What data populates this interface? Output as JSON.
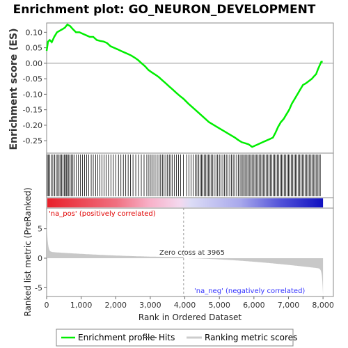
{
  "chart_data": {
    "type": "line",
    "title": "Enrichment plot: GO_NEURON_DEVELOPMENT",
    "es_panel": {
      "ylabel": "Enrichment score (ES)",
      "ylim": [
        -0.29,
        0.13
      ],
      "yticks": [
        -0.25,
        -0.2,
        -0.15,
        -0.1,
        -0.05,
        0.0,
        0.05,
        0.1
      ],
      "ytick_labels": [
        "-0.25",
        "-0.20",
        "-0.15",
        "-0.10",
        "-0.05",
        "0.00",
        "0.05",
        "0.10"
      ],
      "series": [
        {
          "x": [
            0,
            40,
            90,
            150,
            220,
            300,
            380,
            460,
            530,
            600,
            680,
            760,
            850,
            950,
            1050,
            1150,
            1250,
            1350,
            1450,
            1550,
            1650,
            1750,
            1850,
            1950,
            2050,
            2150,
            2250,
            2350,
            2450,
            2550,
            2650,
            2750,
            2850,
            2950,
            3050,
            3150,
            3250,
            3350,
            3450,
            3550,
            3650,
            3750,
            3850,
            3965,
            4100,
            4250,
            4400,
            4550,
            4700,
            4850,
            5000,
            5150,
            5300,
            5450,
            5550,
            5650,
            5750,
            5850,
            5950,
            6050,
            6150,
            6250,
            6350,
            6450,
            6550,
            6620,
            6700,
            6780,
            6860,
            6940,
            7020,
            7100,
            7180,
            7260,
            7340,
            7420,
            7500,
            7560,
            7620,
            7680,
            7740,
            7800,
            7850,
            7900,
            7950,
            7990
          ],
          "y": [
            0.04,
            0.07,
            0.075,
            0.068,
            0.085,
            0.1,
            0.105,
            0.11,
            0.115,
            0.125,
            0.12,
            0.11,
            0.1,
            0.1,
            0.095,
            0.09,
            0.085,
            0.085,
            0.075,
            0.072,
            0.07,
            0.065,
            0.055,
            0.05,
            0.045,
            0.04,
            0.035,
            0.03,
            0.025,
            0.018,
            0.01,
            0.0,
            -0.01,
            -0.022,
            -0.03,
            -0.037,
            -0.045,
            -0.055,
            -0.065,
            -0.075,
            -0.085,
            -0.095,
            -0.105,
            -0.115,
            -0.13,
            -0.145,
            -0.16,
            -0.175,
            -0.19,
            -0.2,
            -0.21,
            -0.22,
            -0.23,
            -0.24,
            -0.248,
            -0.255,
            -0.258,
            -0.262,
            -0.27,
            -0.265,
            -0.26,
            -0.255,
            -0.25,
            -0.245,
            -0.24,
            -0.225,
            -0.205,
            -0.19,
            -0.18,
            -0.165,
            -0.15,
            -0.13,
            -0.115,
            -0.1,
            -0.085,
            -0.07,
            -0.065,
            -0.06,
            -0.055,
            -0.05,
            -0.042,
            -0.035,
            -0.02,
            -0.008,
            0.005,
            0.005
          ]
        }
      ]
    },
    "hits": [
      20,
      50,
      90,
      130,
      180,
      230,
      280,
      320,
      360,
      400,
      430,
      470,
      510,
      540,
      570,
      600,
      640,
      680,
      720,
      760,
      800,
      860,
      920,
      980,
      1040,
      1100,
      1160,
      1220,
      1290,
      1350,
      1420,
      1480,
      1540,
      1600,
      1660,
      1720,
      1790,
      1860,
      1930,
      2000,
      2080,
      2150,
      2220,
      2290,
      2360,
      2430,
      2500,
      2580,
      2660,
      2740,
      2820,
      2900,
      2960,
      3020,
      3080,
      3140,
      3200,
      3250,
      3300,
      3350,
      3400,
      3450,
      3500,
      3550,
      3600,
      3640,
      3700,
      3760,
      3820,
      3880,
      3960,
      4050,
      4120,
      4180,
      4240,
      4300,
      4350,
      4400,
      4440,
      4480,
      4520,
      4560,
      4600,
      4640,
      4680,
      4720,
      4760,
      4800,
      4850,
      4900,
      4950,
      5000,
      5050,
      5100,
      5150,
      5200,
      5250,
      5300,
      5350,
      5400,
      5450,
      5500,
      5550,
      5600,
      5640,
      5680,
      5720,
      5760,
      5800,
      5840,
      5880,
      5920,
      5960,
      6000,
      6040,
      6080,
      6120,
      6160,
      6200,
      6240,
      6280,
      6320,
      6360,
      6400,
      6440,
      6480,
      6520,
      6560,
      6600,
      6640,
      6680,
      6720,
      6760,
      6800,
      6840,
      6880,
      6920,
      6960,
      7000,
      7040,
      7080,
      7120,
      7160,
      7200,
      7240,
      7280,
      7320,
      7360,
      7400,
      7440,
      7480,
      7520,
      7560,
      7600,
      7640,
      7680,
      7720,
      7760,
      7800,
      7840,
      7880,
      7920
    ],
    "metric_panel": {
      "ylabel": "Ranked list metric (PreRanked)",
      "xlabel": "Rank in Ordered Dataset",
      "ylim": [
        -6.5,
        8.5
      ],
      "yticks": [
        -5,
        0,
        5
      ],
      "ytick_labels": [
        "-5",
        "0",
        "5"
      ],
      "xlim": [
        0,
        8300
      ],
      "xticks": [
        0,
        1000,
        2000,
        3000,
        4000,
        5000,
        6000,
        7000,
        8000
      ],
      "xtick_labels": [
        "0",
        "1,000",
        "2,000",
        "3,000",
        "4,000",
        "5,000",
        "6,000",
        "7,000",
        "8,000"
      ],
      "zero_cross": 3965,
      "n": 8000
    },
    "annotations": {
      "pos": "'na_pos' (positively correlated)",
      "neg": "'na_neg' (negatively correlated)",
      "zero_cross": "Zero cross at 3965"
    },
    "legend": {
      "position": "bottom",
      "items": [
        {
          "label": "Enrichment profile",
          "color": "#00ee00"
        },
        {
          "label": "Hits",
          "color": "#666666"
        },
        {
          "label": "Ranking metric scores",
          "color": "#cccccc"
        }
      ]
    },
    "colors": {
      "es_line": "#00ee00",
      "hit": "#000000",
      "metric_fill": "#c8c8c8",
      "pos_text": "#e00000",
      "neg_text": "#3333ff"
    }
  }
}
